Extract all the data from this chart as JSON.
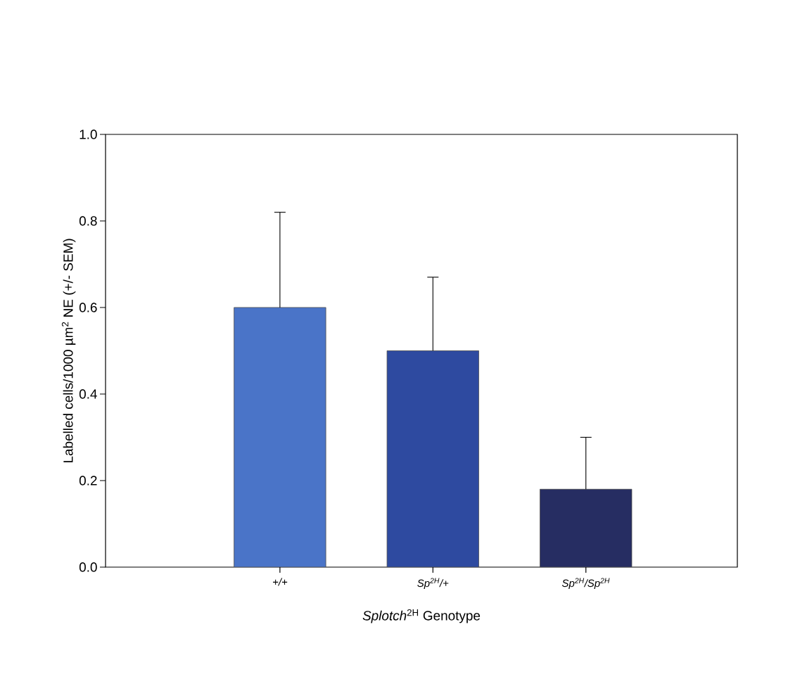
{
  "chart_data": {
    "type": "bar",
    "categories": [
      "+/+",
      "*Sp*$^{2H}$/+",
      "*Sp*$^{2H}$/*Sp*$^{2H}$"
    ],
    "values": [
      0.6,
      0.5,
      0.18
    ],
    "errors": [
      [
        0.6,
        0.82
      ],
      [
        0.5,
        0.67
      ],
      [
        0.18,
        0.3
      ]
    ],
    "colors": [
      "#4a74c8",
      "#2e4aa0",
      "#262d62"
    ],
    "xlabel": "*Splotch*$^{2H}$ Genotype",
    "ylabel": "Labelled cells/1000 µm$^{2}$ NE (+/- SEM)",
    "ylim": [
      0,
      1
    ],
    "yticks": [
      {
        "value": 0,
        "label": "0.0"
      },
      {
        "value": 0.2,
        "label": "0.2"
      },
      {
        "value": 0.4,
        "label": "0.4"
      },
      {
        "value": 0.6,
        "label": "0.6"
      },
      {
        "value": 0.8,
        "label": "0.8"
      },
      {
        "value": 1,
        "label": "1.0"
      }
    ],
    "grid": false
  }
}
